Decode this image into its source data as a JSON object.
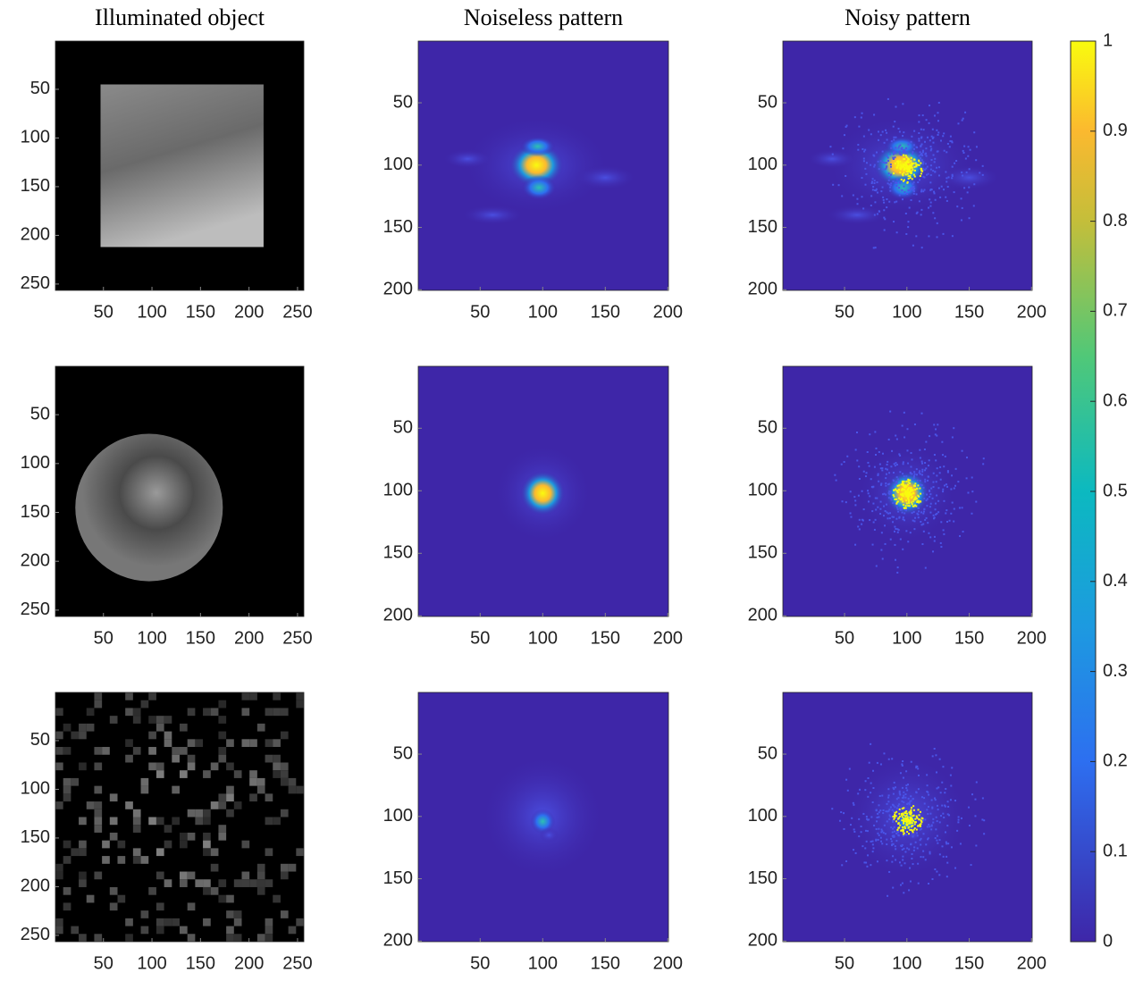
{
  "chart_data": [
    {
      "type": "image",
      "colormap": "gray",
      "title": "Illuminated object",
      "xlim": [
        0.5,
        256.5
      ],
      "ylim": [
        0.5,
        256.5
      ],
      "xticks": [
        50,
        100,
        150,
        200,
        250
      ],
      "yticks": [
        50,
        100,
        150,
        200,
        250
      ]
    },
    {
      "type": "image",
      "colormap": "parula",
      "title": "Noiseless pattern",
      "xlim": [
        0.5,
        200.5
      ],
      "ylim": [
        0.5,
        200.5
      ],
      "xticks": [
        50,
        100,
        150,
        200
      ],
      "yticks": [
        50,
        100,
        150,
        200
      ]
    },
    {
      "type": "image",
      "colormap": "parula",
      "title": "Noisy pattern",
      "xlim": [
        0.5,
        200.5
      ],
      "ylim": [
        0.5,
        200.5
      ],
      "xticks": [
        50,
        100,
        150,
        200
      ],
      "yticks": [
        50,
        100,
        150,
        200
      ]
    },
    {
      "type": "image",
      "colormap": "gray",
      "xlim": [
        0.5,
        256.5
      ],
      "ylim": [
        0.5,
        256.5
      ],
      "xticks": [
        50,
        100,
        150,
        200,
        250
      ],
      "yticks": [
        50,
        100,
        150,
        200,
        250
      ]
    },
    {
      "type": "image",
      "colormap": "parula",
      "xlim": [
        0.5,
        200.5
      ],
      "ylim": [
        0.5,
        200.5
      ],
      "xticks": [
        50,
        100,
        150,
        200
      ],
      "yticks": [
        50,
        100,
        150,
        200
      ]
    },
    {
      "type": "image",
      "colormap": "parula",
      "xlim": [
        0.5,
        200.5
      ],
      "ylim": [
        0.5,
        200.5
      ],
      "xticks": [
        50,
        100,
        150,
        200
      ],
      "yticks": [
        50,
        100,
        150,
        200
      ]
    },
    {
      "type": "image",
      "colormap": "gray",
      "xlim": [
        0.5,
        256.5
      ],
      "ylim": [
        0.5,
        256.5
      ],
      "xticks": [
        50,
        100,
        150,
        200,
        250
      ],
      "yticks": [
        50,
        100,
        150,
        200,
        250
      ]
    },
    {
      "type": "image",
      "colormap": "parula",
      "xlim": [
        0.5,
        200.5
      ],
      "ylim": [
        0.5,
        200.5
      ],
      "xticks": [
        50,
        100,
        150,
        200
      ],
      "yticks": [
        50,
        100,
        150,
        200
      ]
    },
    {
      "type": "image",
      "colormap": "parula",
      "xlim": [
        0.5,
        200.5
      ],
      "ylim": [
        0.5,
        200.5
      ],
      "xticks": [
        50,
        100,
        150,
        200
      ],
      "yticks": [
        50,
        100,
        150,
        200
      ]
    },
    {
      "type": "colorbar",
      "colormap": "parula",
      "lim": [
        0,
        1
      ],
      "ticks": [
        0,
        0.1,
        0.2,
        0.3,
        0.4,
        0.5,
        0.6,
        0.7,
        0.8,
        0.9,
        1
      ]
    }
  ]
}
